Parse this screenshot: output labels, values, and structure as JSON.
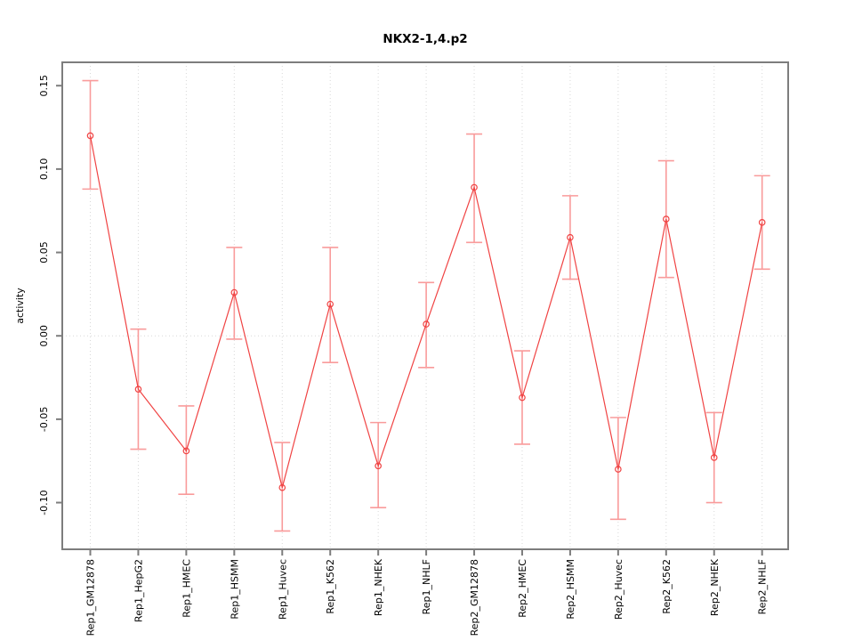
{
  "window": {
    "background": "#ffffff"
  },
  "chart_data": {
    "type": "line",
    "title": "NKX2-1,4.p2",
    "xlabel": "",
    "ylabel": "activity",
    "categories": [
      "Rep1_GM12878",
      "Rep1_HepG2",
      "Rep1_HMEC",
      "Rep1_HSMM",
      "Rep1_Huvec",
      "Rep1_K562",
      "Rep1_NHEK",
      "Rep1_NHLF",
      "Rep2_GM12878",
      "Rep2_HMEC",
      "Rep2_HSMM",
      "Rep2_Huvec",
      "Rep2_K562",
      "Rep2_NHEK",
      "Rep2_NHLF"
    ],
    "series": [
      {
        "name": "activity",
        "values": [
          0.12,
          -0.032,
          -0.069,
          0.026,
          -0.091,
          0.019,
          -0.078,
          0.007,
          0.089,
          -0.037,
          0.059,
          -0.08,
          0.07,
          -0.073,
          0.068
        ],
        "upper": [
          0.153,
          0.004,
          -0.042,
          0.053,
          -0.064,
          0.053,
          -0.052,
          0.032,
          0.121,
          -0.009,
          0.084,
          -0.049,
          0.105,
          -0.046,
          0.096
        ],
        "lower": [
          0.088,
          -0.068,
          -0.095,
          -0.002,
          -0.117,
          -0.016,
          -0.103,
          -0.019,
          0.056,
          -0.065,
          0.034,
          -0.11,
          0.035,
          -0.1,
          0.04
        ]
      }
    ],
    "yticks": [
      0.15,
      0.1,
      0.05,
      0.0,
      -0.05,
      -0.1
    ],
    "ytick_labels": [
      "0.15",
      "0.10",
      "0.05",
      "0.00",
      "-0.05",
      "-0.10"
    ],
    "ylim": [
      -0.128,
      0.164
    ],
    "grid": {
      "vertical_dotted_per_category": true,
      "horizontal_dotted_at_zero": true
    },
    "legend": "none",
    "colors": {
      "line": "#f04343",
      "point": "#f04343",
      "error_bar": "#f99b9b",
      "grid": "#d8d8d8",
      "axis_box": "#7d7d7d",
      "text": "#000000"
    }
  }
}
